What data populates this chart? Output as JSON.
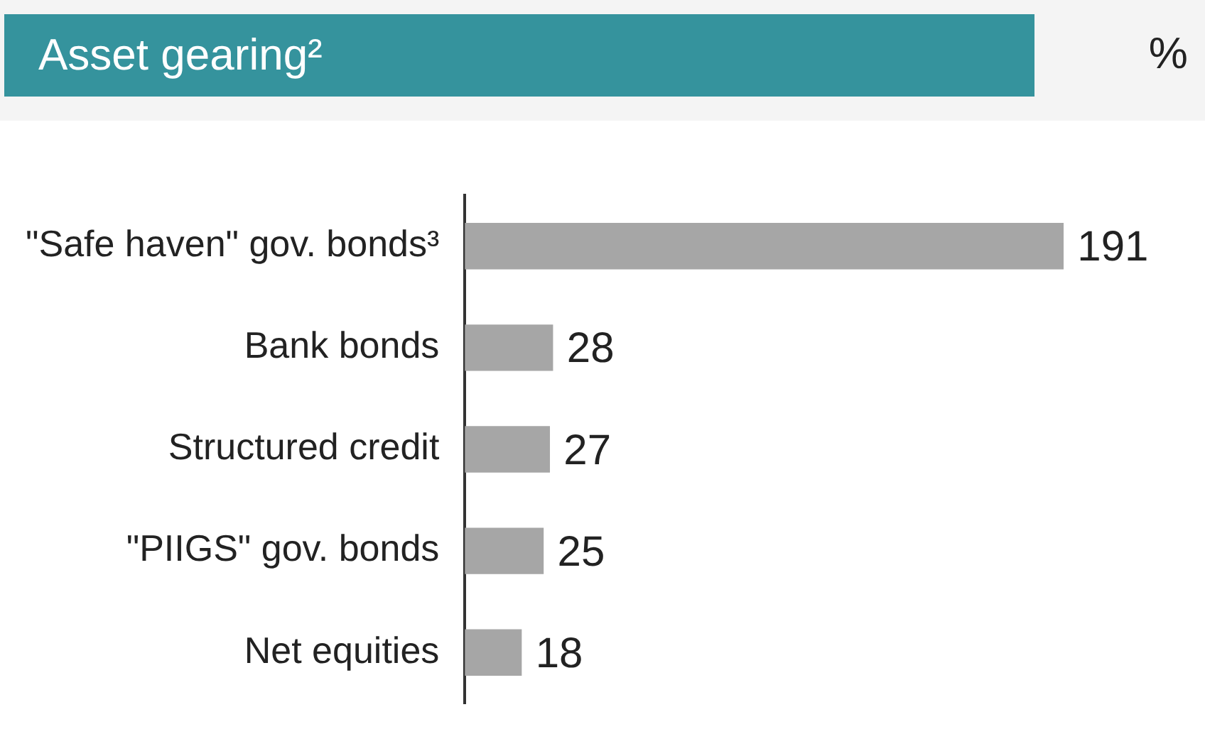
{
  "chart_data": {
    "type": "bar",
    "orientation": "horizontal",
    "title": "Asset gearing²",
    "annotations": [
      "%"
    ],
    "categories": [
      "\"Safe haven\" gov. bonds³",
      "Bank bonds",
      "Structured credit",
      "\"PIIGS\" gov. bonds",
      "Net equities"
    ],
    "values": [
      191,
      28,
      27,
      25,
      18
    ],
    "color": "#a6a6a6",
    "data_labels": true,
    "grid": false,
    "legend": false,
    "tick_labels": "y"
  }
}
